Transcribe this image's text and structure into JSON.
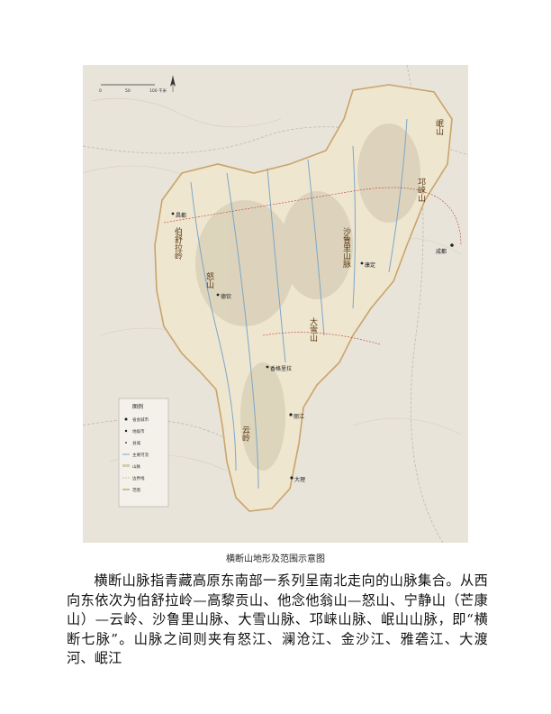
{
  "map": {
    "range_labels": [
      "邛崃山",
      "沙鲁里山脉",
      "伯舒拉岭",
      "怒山",
      "云岭",
      "大雪山",
      "岷山"
    ],
    "city_labels": [
      "成都",
      "丽江",
      "大理",
      "香格里拉",
      "康定",
      "昌都",
      "德钦"
    ],
    "legend": {
      "title": "图例",
      "items": [
        "省会城市",
        "地级市",
        "县城",
        "主要河流",
        "山脉",
        "边界线",
        "范围"
      ]
    },
    "scale_labels": [
      "0",
      "50",
      "100 千米"
    ],
    "colors": {
      "terrain": "#d9d2c0",
      "region_fill": "#efe6d0",
      "boundary": "#c9a46a",
      "river": "#7aa7c9",
      "road": "#c0392b"
    }
  },
  "figure": {
    "caption": "横断山地形及范围示意图"
  },
  "body": {
    "paragraph": "横断山脉指青藏高原东南部一系列呈南北走向的山脉集合。从西向东依次为伯舒拉岭—高黎贡山、他念他翁山—怒山、宁静山（芒康山）—云岭、沙鲁里山脉、大雪山脉、邛崃山脉、岷山山脉，即“横断七脉”。山脉之间则夹有怒江、澜沧江、金沙江、雅砻江、大渡河、岷江"
  }
}
